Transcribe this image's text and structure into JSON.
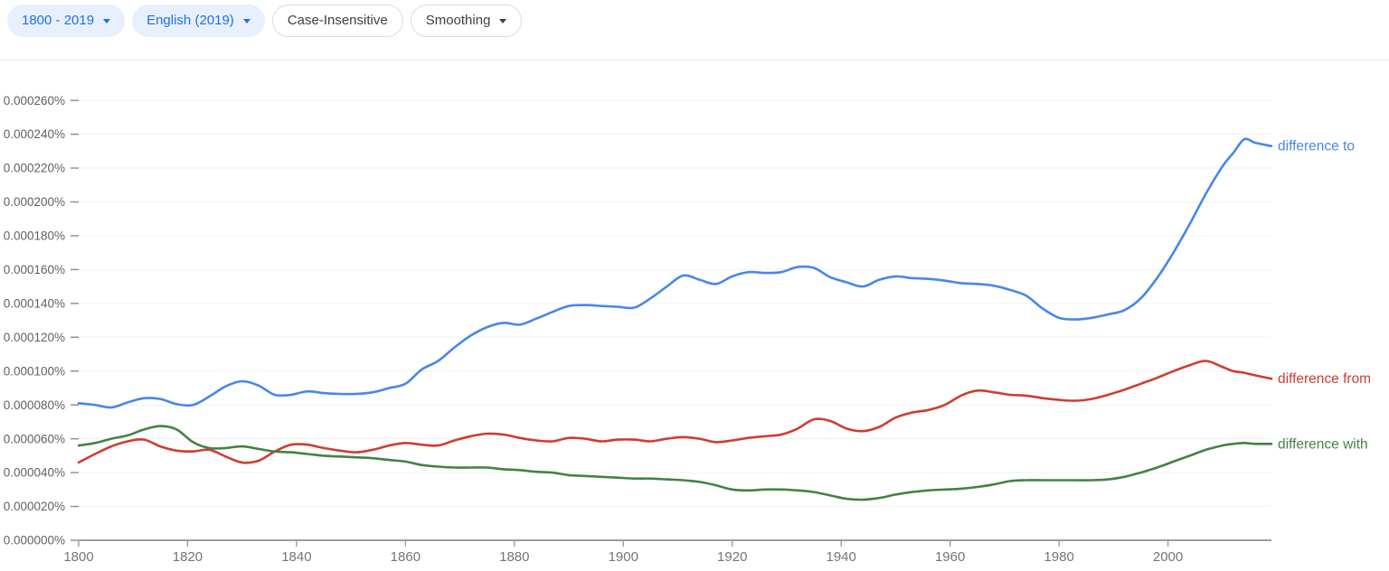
{
  "toolbar": {
    "buttons": [
      {
        "label": "1800 - 2019",
        "caret": true,
        "style": "tonal"
      },
      {
        "label": "English (2019)",
        "caret": true,
        "style": "tonal"
      },
      {
        "label": "Case-Insensitive",
        "caret": false,
        "style": "outline"
      },
      {
        "label": "Smoothing",
        "caret": true,
        "style": "outline"
      }
    ],
    "accent_color": "#1a73e8",
    "tonal_bg": "#e8f0fe",
    "outline_border": "#dadce0",
    "outline_text": "#3c4043"
  },
  "chart_data": {
    "type": "line",
    "title": "",
    "xlabel": "",
    "ylabel": "",
    "xlim": [
      1800,
      2019
    ],
    "ylim_percent": [
      0,
      0.00026
    ],
    "grid": "horizontal",
    "legend_position": "right-of-line-end",
    "values_unit": "word frequency, units of 0.000001%",
    "xticks": [
      1800,
      1820,
      1840,
      1860,
      1880,
      1900,
      1920,
      1940,
      1960,
      1980,
      2000
    ],
    "yticks": [
      "0.000000%",
      "0.000020%",
      "0.000040%",
      "0.000060%",
      "0.000080%",
      "0.000100%",
      "0.000120%",
      "0.000140%",
      "0.000160%",
      "0.000180%",
      "0.000200%",
      "0.000220%",
      "0.000240%",
      "0.000260%"
    ],
    "x": [
      1800,
      1803,
      1806,
      1809,
      1812,
      1815,
      1818,
      1821,
      1824,
      1827,
      1830,
      1833,
      1836,
      1839,
      1842,
      1845,
      1848,
      1851,
      1854,
      1857,
      1860,
      1863,
      1866,
      1869,
      1872,
      1875,
      1878,
      1881,
      1884,
      1887,
      1890,
      1893,
      1896,
      1899,
      1902,
      1905,
      1908,
      1911,
      1914,
      1917,
      1920,
      1923,
      1926,
      1929,
      1932,
      1935,
      1938,
      1941,
      1944,
      1947,
      1950,
      1953,
      1956,
      1959,
      1962,
      1965,
      1968,
      1971,
      1974,
      1977,
      1980,
      1983,
      1986,
      1989,
      1992,
      1995,
      1998,
      2001,
      2004,
      2007,
      2010,
      2012,
      2014,
      2016,
      2019
    ],
    "series": [
      {
        "name": "difference to",
        "color": "#4787EA",
        "values": [
          81,
          80,
          78.5,
          81.5,
          84,
          83.5,
          80.5,
          80,
          85,
          91,
          94,
          91.5,
          86,
          86,
          88,
          87,
          86.5,
          86.5,
          87.5,
          90,
          92.5,
          101,
          106,
          114,
          121,
          126,
          128.5,
          127.5,
          131,
          135,
          138.5,
          139,
          138.5,
          138,
          137.5,
          143,
          150,
          156.5,
          154,
          151.5,
          156,
          158.5,
          158,
          158.5,
          161.5,
          161,
          155.5,
          152.5,
          150,
          154,
          156,
          155,
          154.5,
          153.5,
          152,
          151.5,
          150.5,
          148,
          144.5,
          137,
          131.5,
          130.5,
          131.5,
          133.5,
          136,
          143,
          155,
          170,
          187,
          205,
          221,
          229,
          237,
          235,
          233
        ]
      },
      {
        "name": "difference from",
        "color": "#CE3D31",
        "values": [
          46,
          51,
          55.5,
          58.5,
          59.5,
          55.5,
          53,
          52.5,
          53.5,
          49.5,
          46,
          47,
          52.5,
          56.5,
          56.5,
          54.5,
          53,
          52,
          53.5,
          56,
          57.5,
          56.5,
          56,
          59,
          61.5,
          63,
          62.5,
          60.5,
          59,
          58.5,
          60.5,
          60,
          58.5,
          59.5,
          59.5,
          58.5,
          60,
          61,
          60,
          58,
          59,
          60.5,
          61.5,
          62.5,
          66,
          71.5,
          70.5,
          66,
          64.5,
          67,
          72.5,
          75.5,
          77,
          80,
          85.5,
          88.5,
          87.5,
          86,
          85.5,
          84,
          83,
          82.5,
          83.5,
          86,
          89,
          92.5,
          96,
          100,
          103.5,
          106,
          102.5,
          100,
          99,
          97.5,
          95.5
        ]
      },
      {
        "name": "difference with",
        "color": "#438246",
        "values": [
          56,
          57.5,
          60,
          62,
          65.5,
          67.5,
          65.5,
          58,
          54.5,
          54.5,
          55.5,
          54,
          52.5,
          52,
          51,
          50,
          49.5,
          49,
          48.5,
          47.5,
          46.5,
          44.5,
          43.5,
          43,
          43,
          43,
          42,
          41.5,
          40.5,
          40,
          38.5,
          38,
          37.5,
          37,
          36.5,
          36.5,
          36,
          35.5,
          34.5,
          32.5,
          30,
          29.5,
          30,
          30,
          29.5,
          28.5,
          26.5,
          24.5,
          24,
          25,
          27,
          28.5,
          29.5,
          30,
          30.5,
          31.5,
          33,
          35,
          35.5,
          35.5,
          35.5,
          35.5,
          35.5,
          36,
          37.5,
          40,
          43,
          46.5,
          50,
          53.5,
          56,
          57,
          57.5,
          57,
          57
        ]
      }
    ],
    "axis_color": "#9e9e9e",
    "grid_color": "#f0f0f0",
    "tick_label_color": "#616161"
  }
}
